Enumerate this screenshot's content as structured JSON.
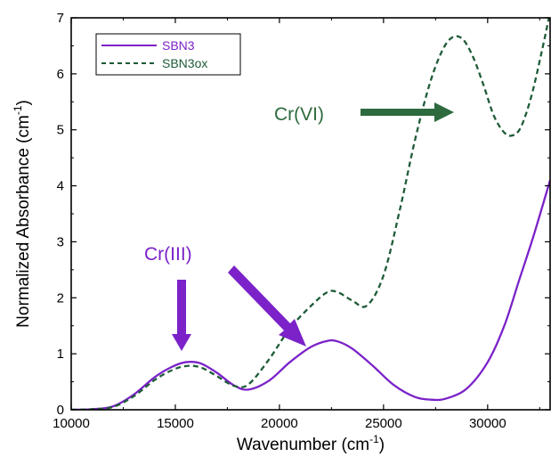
{
  "chart_data": {
    "type": "line",
    "xlabel": "Wavenumber (cm",
    "xlabel_sup": "-1",
    "xlabel_end": ")",
    "ylabel": "Normalized Absorbance (cm",
    "ylabel_sup": "-1",
    "ylabel_end": ")",
    "xlim": [
      10000,
      33000
    ],
    "ylim": [
      0,
      7
    ],
    "xticks": [
      10000,
      15000,
      20000,
      25000,
      30000
    ],
    "xtick_labels": [
      "10000",
      "15000",
      "20000",
      "25000",
      "30000"
    ],
    "yticks": [
      0,
      1,
      2,
      3,
      4,
      5,
      6,
      7
    ],
    "ytick_labels": [
      "0",
      "1",
      "2",
      "3",
      "4",
      "5",
      "6",
      "7"
    ],
    "legend_position": "top-left",
    "series": [
      {
        "name": "SBN3",
        "color": "#7b22c8",
        "style": "solid",
        "x": [
          10000,
          11000,
          12000,
          13000,
          14000,
          14800,
          15500,
          16200,
          17000,
          17800,
          18500,
          19500,
          20500,
          21500,
          22300,
          22800,
          23500,
          24500,
          25500,
          26500,
          27300,
          28000,
          29000,
          30000,
          30800,
          31500,
          32200,
          33000
        ],
        "y": [
          0.0,
          0.01,
          0.06,
          0.27,
          0.58,
          0.76,
          0.85,
          0.83,
          0.66,
          0.44,
          0.36,
          0.52,
          0.85,
          1.12,
          1.23,
          1.22,
          1.09,
          0.78,
          0.44,
          0.23,
          0.18,
          0.2,
          0.38,
          0.85,
          1.5,
          2.3,
          3.1,
          4.1
        ]
      },
      {
        "name": "SBN3ox",
        "color": "#1f5c38",
        "style": "dashed",
        "x": [
          10000,
          11000,
          12000,
          13000,
          14000,
          14800,
          15500,
          16200,
          17000,
          17800,
          18500,
          19500,
          20500,
          21500,
          22300,
          22800,
          23500,
          24200,
          25000,
          25800,
          26500,
          27200,
          27800,
          28300,
          28800,
          29300,
          29800,
          30300,
          30800,
          31200,
          31600,
          32100,
          32600,
          33000
        ],
        "y": [
          0.0,
          0.01,
          0.05,
          0.24,
          0.53,
          0.7,
          0.78,
          0.76,
          0.6,
          0.43,
          0.45,
          0.9,
          1.45,
          1.85,
          2.1,
          2.1,
          1.95,
          1.86,
          2.4,
          3.6,
          4.8,
          5.8,
          6.4,
          6.65,
          6.62,
          6.3,
          5.8,
          5.25,
          4.95,
          4.9,
          5.05,
          5.6,
          6.4,
          7.1
        ]
      }
    ],
    "annotations": [
      {
        "text": "Cr(VI)",
        "color": "#2d6a3e"
      },
      {
        "text": "Cr(III)",
        "color": "#7b22c8"
      }
    ]
  }
}
